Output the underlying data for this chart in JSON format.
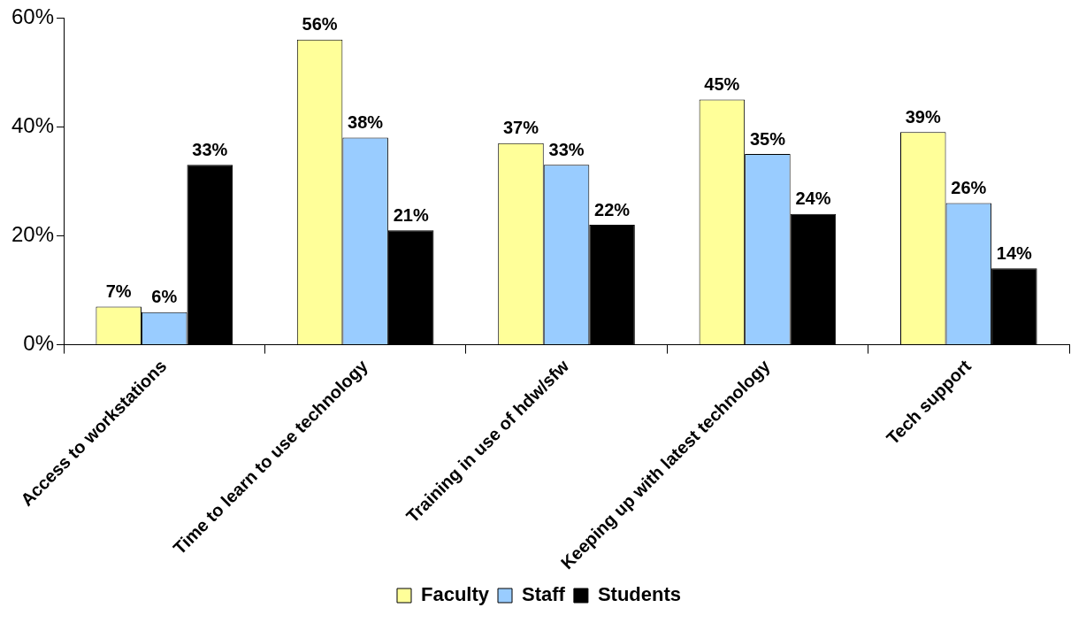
{
  "chart_data": {
    "type": "bar",
    "categories": [
      "Access to workstations",
      "Time to learn to use technology",
      "Training in use of hdw/sfw",
      "Keeping up with latest technology",
      "Tech support"
    ],
    "series": [
      {
        "name": "Faculty",
        "color": "#ffff99",
        "values": [
          7,
          56,
          37,
          45,
          39
        ],
        "value_labels": [
          "7%",
          "56%",
          "37%",
          "45%",
          "39%"
        ]
      },
      {
        "name": "Staff",
        "color": "#99ccff",
        "values": [
          6,
          38,
          33,
          35,
          26
        ],
        "value_labels": [
          "6%",
          "38%",
          "33%",
          "35%",
          "26%"
        ]
      },
      {
        "name": "Students",
        "color": "#000000",
        "values": [
          33,
          21,
          22,
          24,
          14
        ],
        "value_labels": [
          "33%",
          "21%",
          "22%",
          "24%",
          "14%"
        ]
      }
    ],
    "ylim": [
      0,
      60
    ],
    "yticks": [
      {
        "value": 0,
        "label": "0%"
      },
      {
        "value": 20,
        "label": "20%"
      },
      {
        "value": 40,
        "label": "40%"
      },
      {
        "value": 60,
        "label": "60%"
      }
    ],
    "grid": false,
    "legend": "bottom"
  }
}
